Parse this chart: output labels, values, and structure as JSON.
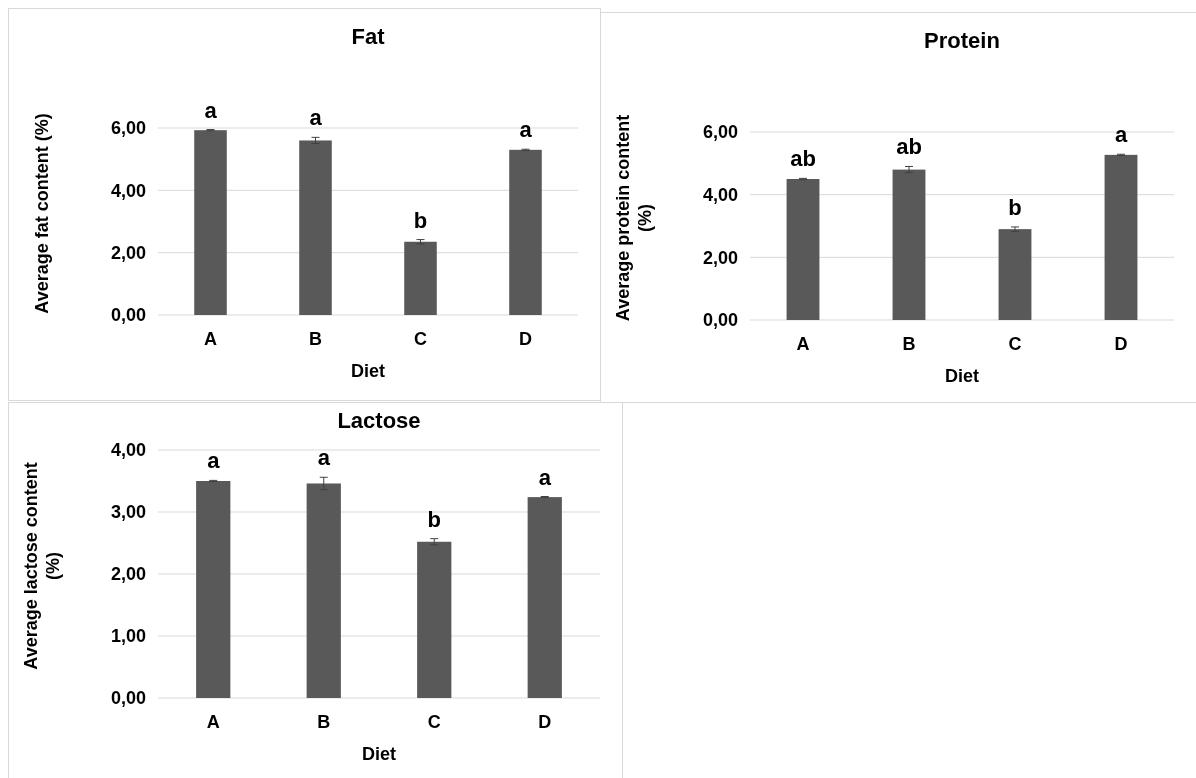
{
  "chart_data": [
    {
      "type": "bar",
      "title": "Fat",
      "xlabel": "Diet",
      "ylabel": "Average fat content (%)",
      "categories": [
        "A",
        "B",
        "C",
        "D"
      ],
      "values": [
        5.93,
        5.6,
        2.35,
        5.3
      ],
      "errors": [
        0.02,
        0.1,
        0.07,
        0.02
      ],
      "color": "#595959",
      "ylim": [
        0,
        6
      ],
      "yticks": [
        {
          "value": 0,
          "label": "0,00"
        },
        {
          "value": 2,
          "label": "2,00"
        },
        {
          "value": 4,
          "label": "4,00"
        },
        {
          "value": 6,
          "label": "6,00"
        }
      ],
      "grid": "y",
      "annotations": [
        {
          "text": "a",
          "x": "A",
          "y": 5.93
        },
        {
          "text": "a",
          "x": "B",
          "y": 5.6
        },
        {
          "text": "b",
          "x": "C",
          "y": 2.35
        },
        {
          "text": "a",
          "x": "D",
          "y": 5.3
        }
      ]
    },
    {
      "type": "bar",
      "title": "Protein",
      "xlabel": "Diet",
      "ylabel": "Average protein content (%)",
      "categories": [
        "A",
        "B",
        "C",
        "D"
      ],
      "values": [
        4.5,
        4.8,
        2.9,
        5.27
      ],
      "errors": [
        0.02,
        0.1,
        0.07,
        0.02
      ],
      "color": "#595959",
      "ylim": [
        0,
        6
      ],
      "yticks": [
        {
          "value": 0,
          "label": "0,00"
        },
        {
          "value": 2,
          "label": "2,00"
        },
        {
          "value": 4,
          "label": "4,00"
        },
        {
          "value": 6,
          "label": "6,00"
        }
      ],
      "grid": "y",
      "annotations": [
        {
          "text": "ab",
          "x": "A",
          "y": 4.5
        },
        {
          "text": "ab",
          "x": "B",
          "y": 4.8
        },
        {
          "text": "b",
          "x": "C",
          "y": 2.9
        },
        {
          "text": "a",
          "x": "D",
          "y": 5.27
        }
      ]
    },
    {
      "type": "bar",
      "title": "Lactose",
      "xlabel": "Diet",
      "ylabel": "Average lactose content (%)",
      "categories": [
        "A",
        "B",
        "C",
        "D"
      ],
      "values": [
        3.5,
        3.46,
        2.52,
        3.24
      ],
      "errors": [
        0.01,
        0.1,
        0.05,
        0.01
      ],
      "color": "#595959",
      "ylim": [
        0,
        4
      ],
      "yticks": [
        {
          "value": 0,
          "label": "0,00"
        },
        {
          "value": 1,
          "label": "1,00"
        },
        {
          "value": 2,
          "label": "2,00"
        },
        {
          "value": 3,
          "label": "3,00"
        },
        {
          "value": 4,
          "label": "4,00"
        }
      ],
      "grid": "y",
      "annotations": [
        {
          "text": "a",
          "x": "A",
          "y": 3.5
        },
        {
          "text": "a",
          "x": "B",
          "y": 3.46
        },
        {
          "text": "b",
          "x": "C",
          "y": 2.52
        },
        {
          "text": "a",
          "x": "D",
          "y": 3.24
        }
      ]
    }
  ]
}
